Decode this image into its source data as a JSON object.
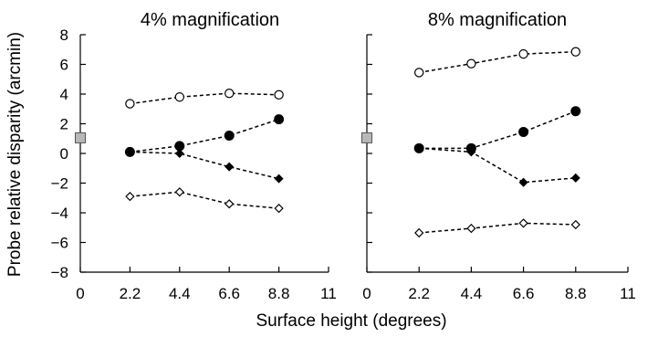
{
  "figure": {
    "xlabel": "Surface height (degrees)",
    "ylabel": "Probe relative disparity (arcmin)"
  },
  "chart_data": [
    {
      "type": "line",
      "title": "4% magnification",
      "xlim": [
        0,
        11
      ],
      "ylim": [
        -8,
        8
      ],
      "xticks": [
        "0",
        "2.2",
        "4.4",
        "6.6",
        "8.8",
        "11"
      ],
      "yticks": [
        "−8",
        "−6",
        "−4",
        "−2",
        "0",
        "2",
        "4",
        "6",
        "8"
      ],
      "x": [
        2.2,
        4.4,
        6.6,
        8.8
      ],
      "reference_point": {
        "x": 0,
        "y": 1.05,
        "marker": "gray-square"
      },
      "series": [
        {
          "marker": "open-circle",
          "values": [
            3.35,
            3.8,
            4.05,
            3.95
          ]
        },
        {
          "marker": "filled-circle",
          "values": [
            0.1,
            0.5,
            1.2,
            2.3
          ]
        },
        {
          "marker": "filled-diamond",
          "values": [
            0.1,
            0.0,
            -0.9,
            -1.7
          ]
        },
        {
          "marker": "open-diamond",
          "values": [
            -2.9,
            -2.6,
            -3.4,
            -3.7
          ]
        }
      ]
    },
    {
      "type": "line",
      "title": "8% magnification",
      "xlim": [
        0,
        11
      ],
      "ylim": [
        -8,
        8
      ],
      "xticks": [
        "0",
        "2.2",
        "4.4",
        "6.6",
        "8.8",
        "11"
      ],
      "x": [
        2.2,
        4.4,
        6.6,
        8.8
      ],
      "reference_point": {
        "x": 0,
        "y": 1.05,
        "marker": "gray-square"
      },
      "series": [
        {
          "marker": "open-circle",
          "values": [
            5.45,
            6.05,
            6.7,
            6.85
          ]
        },
        {
          "marker": "filled-circle",
          "values": [
            0.35,
            0.35,
            1.45,
            2.85
          ]
        },
        {
          "marker": "filled-diamond",
          "values": [
            0.35,
            0.1,
            -1.95,
            -1.65
          ]
        },
        {
          "marker": "open-diamond",
          "values": [
            -5.35,
            -5.05,
            -4.7,
            -4.8
          ]
        }
      ]
    }
  ]
}
